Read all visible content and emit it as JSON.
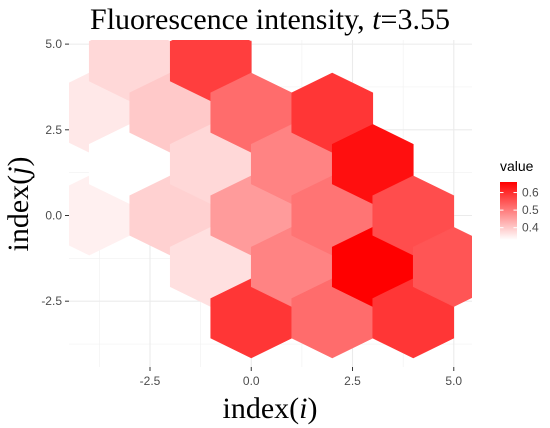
{
  "chart_data": {
    "type": "heatmap",
    "title_prefix": "Fluorescence intensity, ",
    "title_var": "t",
    "title_suffix": "=3.55",
    "xlabel_prefix": "index(",
    "xlabel_var": "i",
    "xlabel_suffix": ")",
    "ylabel_prefix": "index(",
    "ylabel_var": "j",
    "ylabel_suffix": ")",
    "xlim": [
      -4.5,
      5.45
    ],
    "ylim": [
      -4.42,
      5.12
    ],
    "x_ticks": [
      -2.5,
      0.0,
      2.5,
      5.0
    ],
    "x_tick_labels": [
      "-2.5",
      "0.0",
      "2.5",
      "5.0"
    ],
    "y_ticks": [
      -2.5,
      0.0,
      2.5,
      5.0
    ],
    "y_tick_labels": [
      "-2.5",
      "0.0",
      "2.5",
      "5.0"
    ],
    "grid": true,
    "legend": {
      "title": "value",
      "placement": "right",
      "ticks": [
        0.4,
        0.5,
        0.6
      ],
      "tick_labels": [
        "0.4",
        "0.5",
        "0.6"
      ],
      "range": [
        0.33,
        0.66
      ],
      "color_low": "#ffffff",
      "color_high": "#ff0000"
    },
    "hex_radius": 1.155,
    "cells": [
      {
        "x": -4.0,
        "y": 3.0,
        "value": 0.36
      },
      {
        "x": -4.0,
        "y": 0.0,
        "value": 0.35
      },
      {
        "x": -3.0,
        "y": 4.5,
        "value": 0.38
      },
      {
        "x": -3.0,
        "y": 1.5,
        "value": 0.33
      },
      {
        "x": -2.0,
        "y": 3.0,
        "value": 0.4
      },
      {
        "x": -2.0,
        "y": 0.0,
        "value": 0.39
      },
      {
        "x": -1.0,
        "y": 4.5,
        "value": 0.58
      },
      {
        "x": -1.0,
        "y": 1.5,
        "value": 0.38
      },
      {
        "x": -1.0,
        "y": -1.5,
        "value": 0.37
      },
      {
        "x": 0.0,
        "y": 3.0,
        "value": 0.52
      },
      {
        "x": 0.0,
        "y": 0.0,
        "value": 0.46
      },
      {
        "x": 0.0,
        "y": -3.0,
        "value": 0.59
      },
      {
        "x": 1.0,
        "y": 1.5,
        "value": 0.49
      },
      {
        "x": 1.0,
        "y": -1.5,
        "value": 0.49
      },
      {
        "x": 2.0,
        "y": 3.0,
        "value": 0.59
      },
      {
        "x": 2.0,
        "y": 0.0,
        "value": 0.51
      },
      {
        "x": 2.0,
        "y": -3.0,
        "value": 0.52
      },
      {
        "x": 3.0,
        "y": 1.5,
        "value": 0.64
      },
      {
        "x": 3.0,
        "y": -1.5,
        "value": 0.66
      },
      {
        "x": 4.0,
        "y": 0.0,
        "value": 0.56
      },
      {
        "x": 4.0,
        "y": -3.0,
        "value": 0.59
      },
      {
        "x": 5.0,
        "y": -1.5,
        "value": 0.55
      }
    ]
  }
}
